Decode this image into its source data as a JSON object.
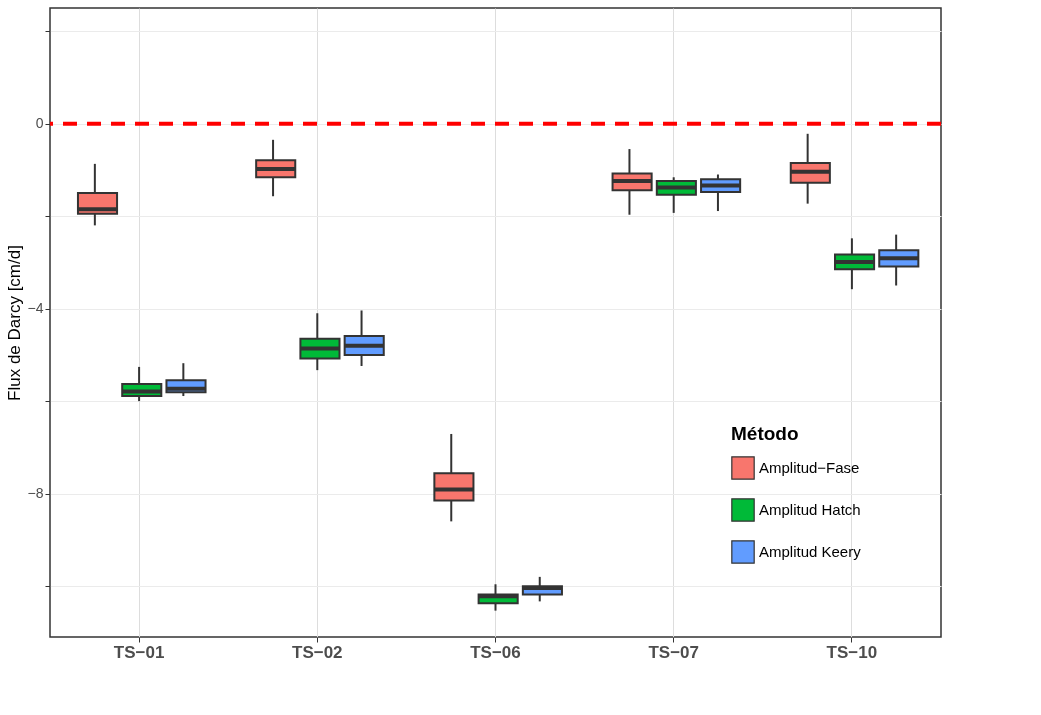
{
  "chart_data": {
    "type": "box",
    "categories": [
      "TS−01",
      "TS−02",
      "TS−06",
      "TS−07",
      "TS−10"
    ],
    "ylabel": "Flux de Darcy [cm/d]",
    "legend_title": "Método",
    "ylim": [
      -11.1,
      2.5
    ],
    "yticks": [
      {
        "value": 2,
        "label": null
      },
      0,
      {
        "value": -2,
        "label": null
      },
      -4,
      {
        "value": -6,
        "label": null
      },
      -8,
      {
        "value": -10,
        "label": null
      }
    ],
    "grid": true,
    "legend": "right",
    "ref_lines": [
      {
        "axis": "y",
        "value": 0,
        "color": "#ff0000",
        "line_style": "dashed"
      }
    ],
    "series": [
      {
        "name": "Amplitud−Fase",
        "color": "#f8766d",
        "boxes": [
          {
            "low": -2.2,
            "q1": -1.95,
            "median": -1.85,
            "q3": -1.5,
            "high": -0.87
          },
          {
            "low": -1.57,
            "q1": -1.16,
            "median": -0.98,
            "q3": -0.79,
            "high": -0.35
          },
          {
            "low": -8.6,
            "q1": -8.15,
            "median": -7.91,
            "q3": -7.56,
            "high": -6.71
          },
          {
            "low": -1.97,
            "q1": -1.44,
            "median": -1.24,
            "q3": -1.08,
            "high": -0.55
          },
          {
            "low": -1.73,
            "q1": -1.28,
            "median": -1.04,
            "q3": -0.85,
            "high": -0.22
          }
        ]
      },
      {
        "name": "Amplitud Hatch",
        "color": "#00ba38",
        "boxes": [
          {
            "low": -6.0,
            "q1": -5.89,
            "median": -5.79,
            "q3": -5.63,
            "high": -5.26
          },
          {
            "low": -5.33,
            "q1": -5.08,
            "median": -4.86,
            "q3": -4.65,
            "high": -4.1
          },
          {
            "low": -10.53,
            "q1": -10.37,
            "median": -10.22,
            "q3": -10.18,
            "high": -9.96
          },
          {
            "low": -1.93,
            "q1": -1.54,
            "median": -1.38,
            "q3": -1.24,
            "high": -1.16
          },
          {
            "low": -3.58,
            "q1": -3.15,
            "median": -2.99,
            "q3": -2.83,
            "high": -2.48
          }
        ]
      },
      {
        "name": "Amplitud Keery",
        "color": "#619cff",
        "boxes": [
          {
            "low": -5.89,
            "q1": -5.81,
            "median": -5.73,
            "q3": -5.55,
            "high": -5.18
          },
          {
            "low": -5.24,
            "q1": -5.0,
            "median": -4.8,
            "q3": -4.59,
            "high": -4.04
          },
          {
            "low": -10.33,
            "q1": -10.18,
            "median": -10.04,
            "q3": -10.0,
            "high": -9.8
          },
          {
            "low": -1.89,
            "q1": -1.48,
            "median": -1.34,
            "q3": -1.2,
            "high": -1.1
          },
          {
            "low": -3.5,
            "q1": -3.09,
            "median": -2.91,
            "q3": -2.74,
            "high": -2.4
          }
        ]
      }
    ]
  }
}
